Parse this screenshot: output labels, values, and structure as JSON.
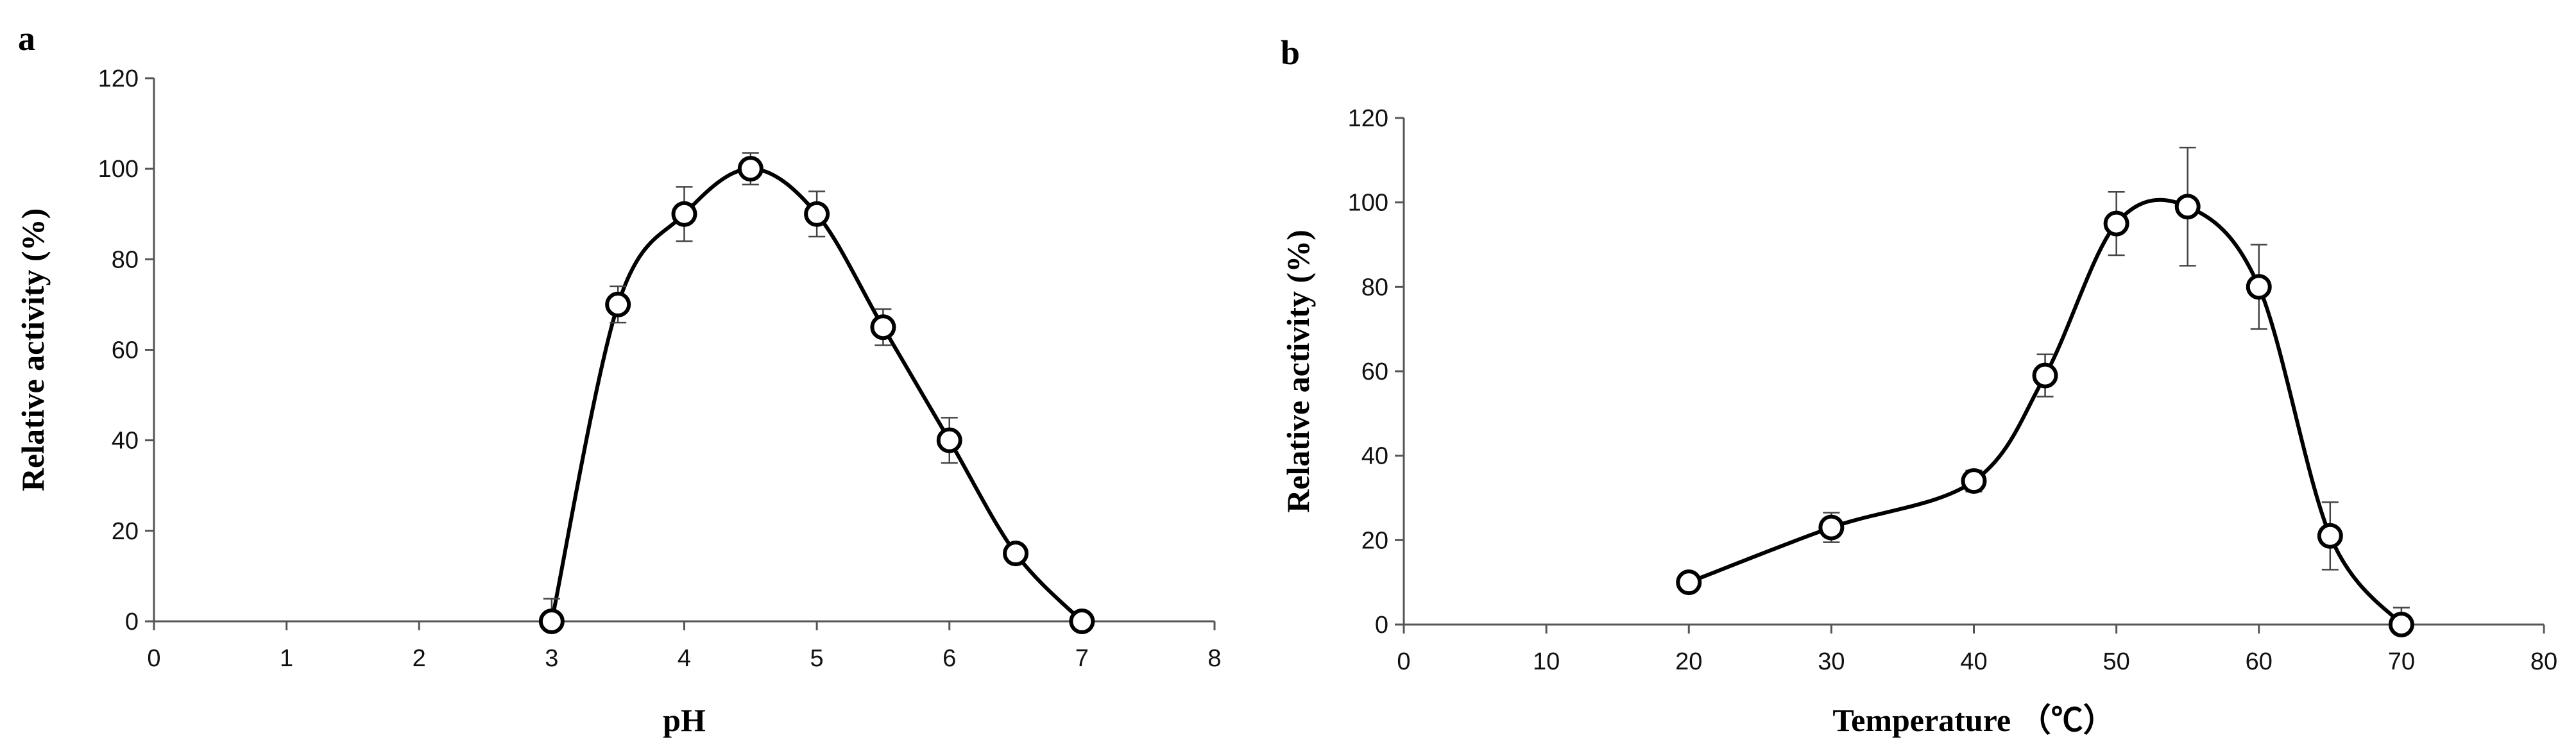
{
  "chart_data": [
    {
      "panel_label": "a",
      "type": "line",
      "xlabel": "pH",
      "ylabel": "Relative activity (%)",
      "xlim": [
        0,
        8
      ],
      "ylim": [
        0,
        120
      ],
      "x_ticks": [
        "0",
        "1",
        "2",
        "3",
        "4",
        "5",
        "6",
        "7",
        "8"
      ],
      "y_ticks": [
        "0",
        "20",
        "40",
        "60",
        "80",
        "100",
        "120"
      ],
      "grid": false,
      "marker": "open-circle",
      "smooth": true,
      "points": [
        {
          "x": 3.0,
          "y": 0,
          "err": 5
        },
        {
          "x": 3.5,
          "y": 70,
          "err": 4
        },
        {
          "x": 4.0,
          "y": 90,
          "err": 6
        },
        {
          "x": 4.5,
          "y": 100,
          "err": 3.5
        },
        {
          "x": 5.0,
          "y": 90,
          "err": 5
        },
        {
          "x": 5.5,
          "y": 65,
          "err": 4
        },
        {
          "x": 6.0,
          "y": 40,
          "err": 5
        },
        {
          "x": 6.5,
          "y": 15,
          "err": 2
        },
        {
          "x": 7.0,
          "y": 0,
          "err": 2
        }
      ]
    },
    {
      "panel_label": "b",
      "type": "line",
      "xlabel": "Temperature （℃）",
      "ylabel": "Relative activity (%)",
      "xlim": [
        0,
        80
      ],
      "ylim": [
        0,
        120
      ],
      "x_ticks": [
        "0",
        "10",
        "20",
        "30",
        "40",
        "50",
        "60",
        "70",
        "80"
      ],
      "y_ticks": [
        "0",
        "20",
        "40",
        "60",
        "80",
        "100",
        "120"
      ],
      "grid": false,
      "marker": "open-circle",
      "smooth": true,
      "points": [
        {
          "x": 20,
          "y": 10,
          "err": 0
        },
        {
          "x": 30,
          "y": 23,
          "err": 3.5
        },
        {
          "x": 40,
          "y": 34,
          "err": 2.5
        },
        {
          "x": 45,
          "y": 59,
          "err": 5
        },
        {
          "x": 50,
          "y": 95,
          "err": 7.5
        },
        {
          "x": 55,
          "y": 99,
          "err": 14
        },
        {
          "x": 60,
          "y": 80,
          "err": 10
        },
        {
          "x": 65,
          "y": 21,
          "err": 8
        },
        {
          "x": 70,
          "y": 0,
          "err": 4
        }
      ]
    }
  ]
}
